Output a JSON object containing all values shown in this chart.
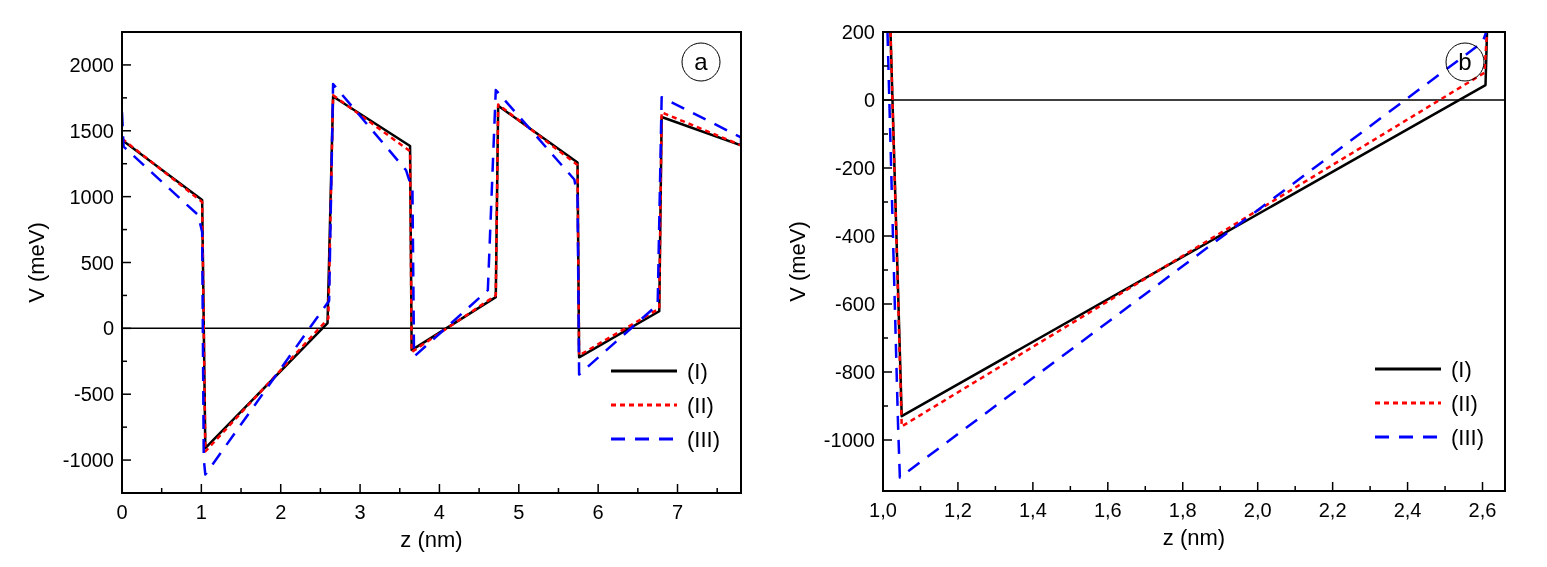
{
  "chart_data": [
    {
      "type": "line",
      "xlabel": "z (nm)",
      "ylabel": "V (meV)",
      "annotations": [
        "a"
      ],
      "legend": "bottom right",
      "grid": false,
      "xlim": [
        0,
        7.8
      ],
      "xticks": [
        0,
        {
          "value": 0.5,
          "label": null
        },
        1,
        {
          "value": 1.5,
          "label": null
        },
        2,
        {
          "value": 2.5,
          "label": null
        },
        3,
        {
          "value": 3.5,
          "label": null
        },
        4,
        {
          "value": 4.5,
          "label": null
        },
        5,
        {
          "value": 5.5,
          "label": null
        },
        6,
        {
          "value": 6.5,
          "label": null
        },
        7,
        {
          "value": 7.5,
          "label": null
        }
      ],
      "ylim": [
        -1250,
        2250
      ],
      "yticks": [
        -1000,
        {
          "value": -750,
          "label": null
        },
        -500,
        {
          "value": -250,
          "label": null
        },
        0,
        {
          "value": 250,
          "label": null
        },
        500,
        {
          "value": 750,
          "label": null
        },
        1000,
        {
          "value": 1250,
          "label": null
        },
        1500,
        {
          "value": 1750,
          "label": null
        },
        2000
      ],
      "ref_lines": [
        {
          "axis": "y",
          "value": 0,
          "color": "#000000"
        }
      ],
      "series": [
        {
          "name": "(I)",
          "color": "#000000",
          "line_style": "solid",
          "x": [
            0,
            1.01,
            1.05,
            2.59,
            2.66,
            3.63,
            3.65,
            4.71,
            4.74,
            5.74,
            5.76,
            6.77,
            6.8,
            7.8
          ],
          "values": [
            1430,
            975,
            -910,
            40,
            1760,
            1385,
            -165,
            237,
            1690,
            1260,
            -220,
            130,
            1605,
            1390
          ]
        },
        {
          "name": "(II)",
          "color": "#ff0000",
          "line_style": "dotted",
          "x": [
            0,
            1.01,
            1.05,
            2.6,
            2.66,
            3.63,
            3.65,
            4.71,
            4.74,
            5.74,
            5.76,
            6.77,
            6.8,
            7.8
          ],
          "values": [
            1440,
            960,
            -935,
            75,
            1770,
            1345,
            -180,
            250,
            1700,
            1240,
            -205,
            150,
            1640,
            1390
          ]
        },
        {
          "name": "(III)",
          "color": "#0000ff",
          "line_style": "dashed",
          "x": [
            0,
            0.02,
            0.96,
            1.01,
            1.03,
            1.05,
            2.61,
            2.66,
            3.58,
            3.66,
            3.68,
            4.61,
            4.71,
            5.7,
            5.74,
            5.76,
            6.75,
            6.8,
            7.8,
            7.8
          ],
          "values": [
            1640,
            1380,
            860,
            730,
            -990,
            -1110,
            210,
            1855,
            1200,
            1050,
            -215,
            290,
            1810,
            1130,
            1000,
            -350,
            180,
            1755,
            1450,
            1400
          ]
        }
      ]
    },
    {
      "type": "line",
      "xlabel": "z (nm)",
      "ylabel": "V (meV)",
      "annotations": [
        "b"
      ],
      "legend": "bottom right",
      "grid": false,
      "xlim": [
        1.0,
        2.66
      ],
      "xticks": [
        {
          "value": 1.0,
          "label": "1,0"
        },
        {
          "value": 1.1,
          "label": null
        },
        {
          "value": 1.2,
          "label": "1,2"
        },
        {
          "value": 1.3,
          "label": null
        },
        {
          "value": 1.4,
          "label": "1,4"
        },
        {
          "value": 1.5,
          "label": null
        },
        {
          "value": 1.6,
          "label": "1,6"
        },
        {
          "value": 1.7,
          "label": null
        },
        {
          "value": 1.8,
          "label": "1,8"
        },
        {
          "value": 1.9,
          "label": null
        },
        {
          "value": 2.0,
          "label": "2,0"
        },
        {
          "value": 2.1,
          "label": null
        },
        {
          "value": 2.2,
          "label": "2,2"
        },
        {
          "value": 2.3,
          "label": null
        },
        {
          "value": 2.4,
          "label": "2,4"
        },
        {
          "value": 2.5,
          "label": null
        },
        {
          "value": 2.6,
          "label": "2,6"
        }
      ],
      "ylim": [
        -1150,
        200
      ],
      "yticks": [
        -1000,
        {
          "value": -900,
          "label": null
        },
        -800,
        {
          "value": -700,
          "label": null
        },
        -600,
        {
          "value": -500,
          "label": null
        },
        -400,
        {
          "value": -300,
          "label": null
        },
        -200,
        {
          "value": -100,
          "label": null
        },
        0,
        {
          "value": 100,
          "label": null
        },
        200
      ],
      "ref_lines": [
        {
          "axis": "y",
          "value": 0,
          "color": "#000000"
        }
      ],
      "series": [
        {
          "name": "(I)",
          "color": "#000000",
          "line_style": "solid",
          "x": [
            1.02,
            1.05,
            2.608,
            2.612
          ],
          "values": [
            200,
            -930,
            44,
            200
          ]
        },
        {
          "name": "(II)",
          "color": "#ff0000",
          "line_style": "dotted",
          "x": [
            1.02,
            1.05,
            2.605,
            2.612
          ],
          "values": [
            200,
            -960,
            80,
            200
          ]
        },
        {
          "name": "(III)",
          "color": "#0000ff",
          "line_style": "dashed",
          "x": [
            1.012,
            1.04,
            1.045,
            2.6,
            2.61
          ],
          "values": [
            200,
            -950,
            -1110,
            170,
            200
          ]
        }
      ]
    }
  ]
}
